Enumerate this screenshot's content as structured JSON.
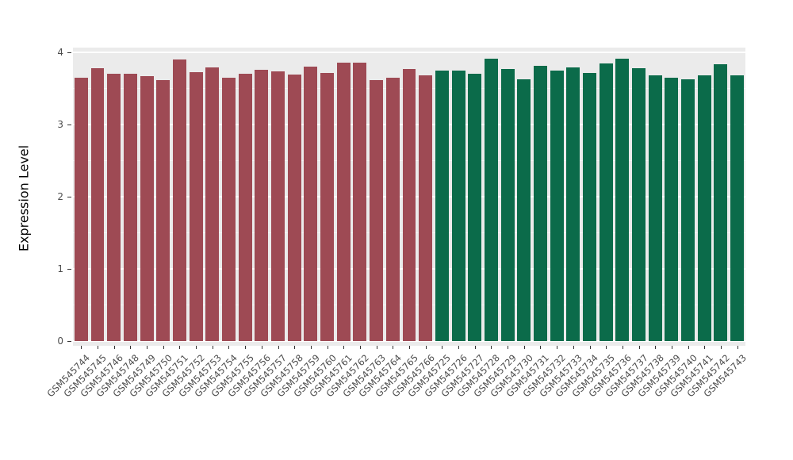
{
  "chart_data": {
    "type": "bar",
    "title": "",
    "xlabel": "",
    "ylabel": "Expression Level",
    "ylim": [
      0,
      4
    ],
    "yticks": [
      0,
      1,
      2,
      3,
      4
    ],
    "grid": true,
    "legend": "none",
    "panel_bg": "#ebebeb",
    "grid_color": "#ffffff",
    "group_split_index": 22,
    "colors": {
      "left_group": "#9e4a54",
      "right_group": "#0b6b4a"
    },
    "categories": [
      "GSM545744",
      "GSM545745",
      "GSM545746",
      "GSM545748",
      "GSM545749",
      "GSM545750",
      "GSM545751",
      "GSM545752",
      "GSM545753",
      "GSM545754",
      "GSM545755",
      "GSM545756",
      "GSM545757",
      "GSM545758",
      "GSM545759",
      "GSM545760",
      "GSM545761",
      "GSM545762",
      "GSM545763",
      "GSM545764",
      "GSM545765",
      "GSM545766",
      "GSM545725",
      "GSM545726",
      "GSM545727",
      "GSM545728",
      "GSM545729",
      "GSM545730",
      "GSM545731",
      "GSM545732",
      "GSM545733",
      "GSM545734",
      "GSM545735",
      "GSM545736",
      "GSM545737",
      "GSM545738",
      "GSM545739",
      "GSM545740",
      "GSM545741",
      "GSM545742",
      "GSM545743"
    ],
    "values": [
      3.65,
      3.78,
      3.7,
      3.7,
      3.67,
      3.62,
      3.9,
      3.73,
      3.79,
      3.65,
      3.7,
      3.76,
      3.74,
      3.69,
      3.8,
      3.71,
      3.86,
      3.86,
      3.62,
      3.65,
      3.77,
      3.68,
      3.75,
      3.75,
      3.7,
      3.91,
      3.77,
      3.63,
      3.81,
      3.75,
      3.79,
      3.71,
      3.85,
      3.91,
      3.78,
      3.68,
      3.65,
      3.63,
      3.68,
      3.83,
      3.68
    ]
  }
}
